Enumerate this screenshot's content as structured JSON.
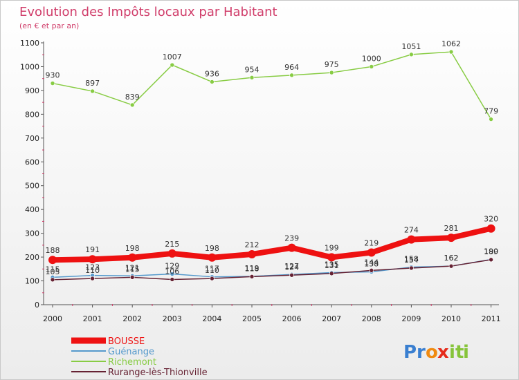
{
  "chart_data": {
    "type": "line",
    "title": "Evolution des Impôts locaux par Habitant",
    "subtitle": "(en € et par an)",
    "categories": [
      "2000",
      "2001",
      "2002",
      "2003",
      "2004",
      "2005",
      "2006",
      "2007",
      "2008",
      "2009",
      "2010",
      "2011"
    ],
    "ylim": [
      0,
      1100
    ],
    "yticks": [
      0,
      100,
      200,
      300,
      400,
      500,
      600,
      700,
      800,
      900,
      1000,
      1100
    ],
    "grid": false,
    "legend_position": "bottom-left",
    "series": [
      {
        "name": "BOUSSE",
        "color": "#ee1111",
        "emphasis": true,
        "values": [
          188,
          191,
          198,
          215,
          198,
          212,
          239,
          199,
          219,
          274,
          281,
          320
        ]
      },
      {
        "name": "Guénange",
        "color": "#5599cc",
        "emphasis": false,
        "values": [
          115,
          123,
          121,
          129,
          117,
          119,
          127,
          135,
          138,
          158,
          162,
          190
        ]
      },
      {
        "name": "Richemont",
        "color": "#88cc44",
        "emphasis": false,
        "values": [
          930,
          897,
          839,
          1007,
          936,
          954,
          964,
          975,
          1000,
          1051,
          1062,
          779
        ]
      },
      {
        "name": "Rurange-lès-Thionville",
        "color": "#662233",
        "emphasis": false,
        "values": [
          105,
          110,
          115,
          106,
          110,
          118,
          124,
          131,
          144,
          154,
          162,
          189
        ]
      }
    ]
  },
  "branding": {
    "logo_letters": [
      "P",
      "r",
      "o",
      "x",
      "i",
      "t",
      "i"
    ],
    "logo_colors": [
      "#3a7fd0",
      "#3a7fd0",
      "#f08a10",
      "#e52a1a",
      "#86c43a",
      "#86c43a",
      "#86c43a"
    ]
  }
}
